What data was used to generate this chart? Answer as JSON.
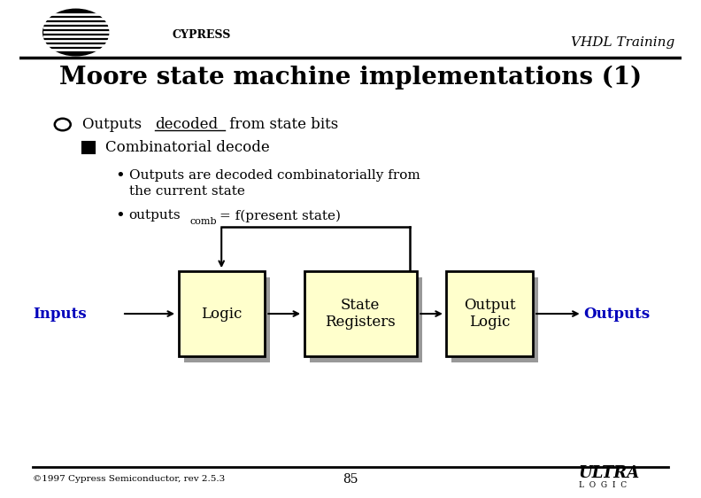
{
  "title": "Moore state machine implementations (1)",
  "header_text": "VHDL Training",
  "bg_color": "#ffffff",
  "title_color": "#000000",
  "title_fontsize": 20,
  "box_fill": "#ffffcc",
  "box_edge": "#000000",
  "shadow_color": "#999999",
  "inputs_label": "Inputs",
  "outputs_label": "Outputs",
  "label_color": "#0000bb",
  "box1_label": "Logic",
  "box2_label": "State\nRegisters",
  "box3_label": "Output\nLogic",
  "footer_text": "©1997 Cypress Semiconductor, rev 2.5.3",
  "page_number": "85",
  "figw": 7.92,
  "figh": 5.62,
  "dpi": 100
}
